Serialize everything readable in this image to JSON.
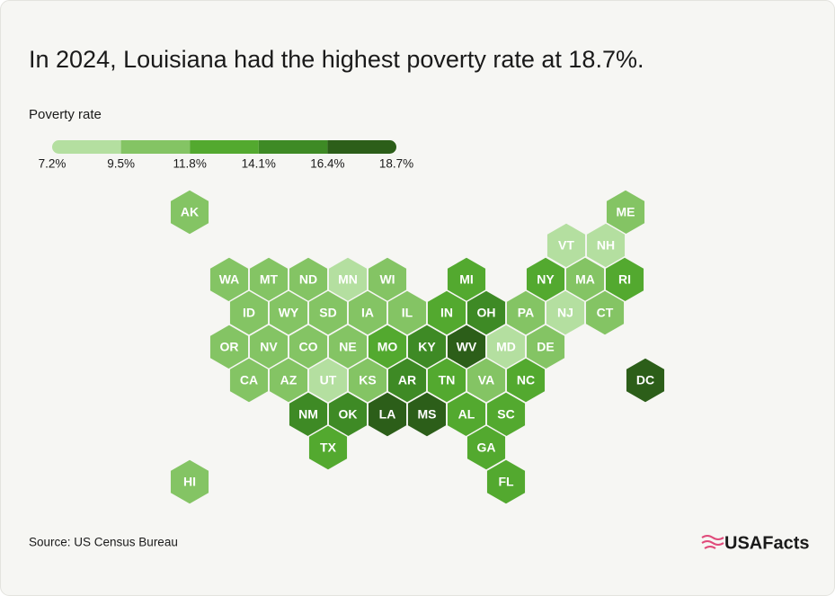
{
  "chart_data": {
    "type": "hexmap",
    "title": "In 2024, Louisiana had the highest poverty rate at 18.7%.",
    "legend_title": "Poverty rate",
    "xlim": [
      7.2,
      18.7
    ],
    "xticks": [
      {
        "value": 7.2,
        "label": "7.2%"
      },
      {
        "value": 9.5,
        "label": "9.5%"
      },
      {
        "value": 11.8,
        "label": "11.8%"
      },
      {
        "value": 14.1,
        "label": "14.1%"
      },
      {
        "value": 16.4,
        "label": "16.4%"
      },
      {
        "value": 18.7,
        "label": "18.7%"
      }
    ],
    "colors": [
      "#b4dfa0",
      "#84c464",
      "#53a92f",
      "#3e8a25",
      "#2c5e19"
    ],
    "states": [
      {
        "label": "AK",
        "color": "#84c464"
      },
      {
        "label": "ME",
        "color": "#84c464"
      },
      {
        "label": "VT",
        "color": "#b4dfa0"
      },
      {
        "label": "NH",
        "color": "#b4dfa0"
      },
      {
        "label": "WA",
        "color": "#84c464"
      },
      {
        "label": "MT",
        "color": "#84c464"
      },
      {
        "label": "ND",
        "color": "#84c464"
      },
      {
        "label": "MN",
        "color": "#b4dfa0"
      },
      {
        "label": "WI",
        "color": "#84c464"
      },
      {
        "label": "MI",
        "color": "#53a92f"
      },
      {
        "label": "NY",
        "color": "#53a92f"
      },
      {
        "label": "MA",
        "color": "#84c464"
      },
      {
        "label": "RI",
        "color": "#53a92f"
      },
      {
        "label": "ID",
        "color": "#84c464"
      },
      {
        "label": "WY",
        "color": "#84c464"
      },
      {
        "label": "SD",
        "color": "#84c464"
      },
      {
        "label": "IA",
        "color": "#84c464"
      },
      {
        "label": "IL",
        "color": "#84c464"
      },
      {
        "label": "IN",
        "color": "#53a92f"
      },
      {
        "label": "OH",
        "color": "#3e8a25"
      },
      {
        "label": "PA",
        "color": "#84c464"
      },
      {
        "label": "NJ",
        "color": "#b4dfa0"
      },
      {
        "label": "CT",
        "color": "#84c464"
      },
      {
        "label": "OR",
        "color": "#84c464"
      },
      {
        "label": "NV",
        "color": "#84c464"
      },
      {
        "label": "CO",
        "color": "#84c464"
      },
      {
        "label": "NE",
        "color": "#84c464"
      },
      {
        "label": "MO",
        "color": "#53a92f"
      },
      {
        "label": "KY",
        "color": "#3e8a25"
      },
      {
        "label": "WV",
        "color": "#2c5e19"
      },
      {
        "label": "MD",
        "color": "#b4dfa0"
      },
      {
        "label": "DE",
        "color": "#84c464"
      },
      {
        "label": "CA",
        "color": "#84c464"
      },
      {
        "label": "AZ",
        "color": "#84c464"
      },
      {
        "label": "UT",
        "color": "#b4dfa0"
      },
      {
        "label": "KS",
        "color": "#84c464"
      },
      {
        "label": "AR",
        "color": "#3e8a25"
      },
      {
        "label": "TN",
        "color": "#53a92f"
      },
      {
        "label": "VA",
        "color": "#84c464"
      },
      {
        "label": "NC",
        "color": "#53a92f"
      },
      {
        "label": "DC",
        "color": "#2c5e19"
      },
      {
        "label": "NM",
        "color": "#3e8a25"
      },
      {
        "label": "OK",
        "color": "#3e8a25"
      },
      {
        "label": "LA",
        "color": "#2c5e19"
      },
      {
        "label": "MS",
        "color": "#2c5e19"
      },
      {
        "label": "AL",
        "color": "#53a92f"
      },
      {
        "label": "SC",
        "color": "#53a92f"
      },
      {
        "label": "TX",
        "color": "#53a92f"
      },
      {
        "label": "GA",
        "color": "#53a92f"
      },
      {
        "label": "HI",
        "color": "#84c464"
      },
      {
        "label": "FL",
        "color": "#53a92f"
      }
    ],
    "source": "Source: US Census Bureau",
    "brand": "USAFacts"
  }
}
